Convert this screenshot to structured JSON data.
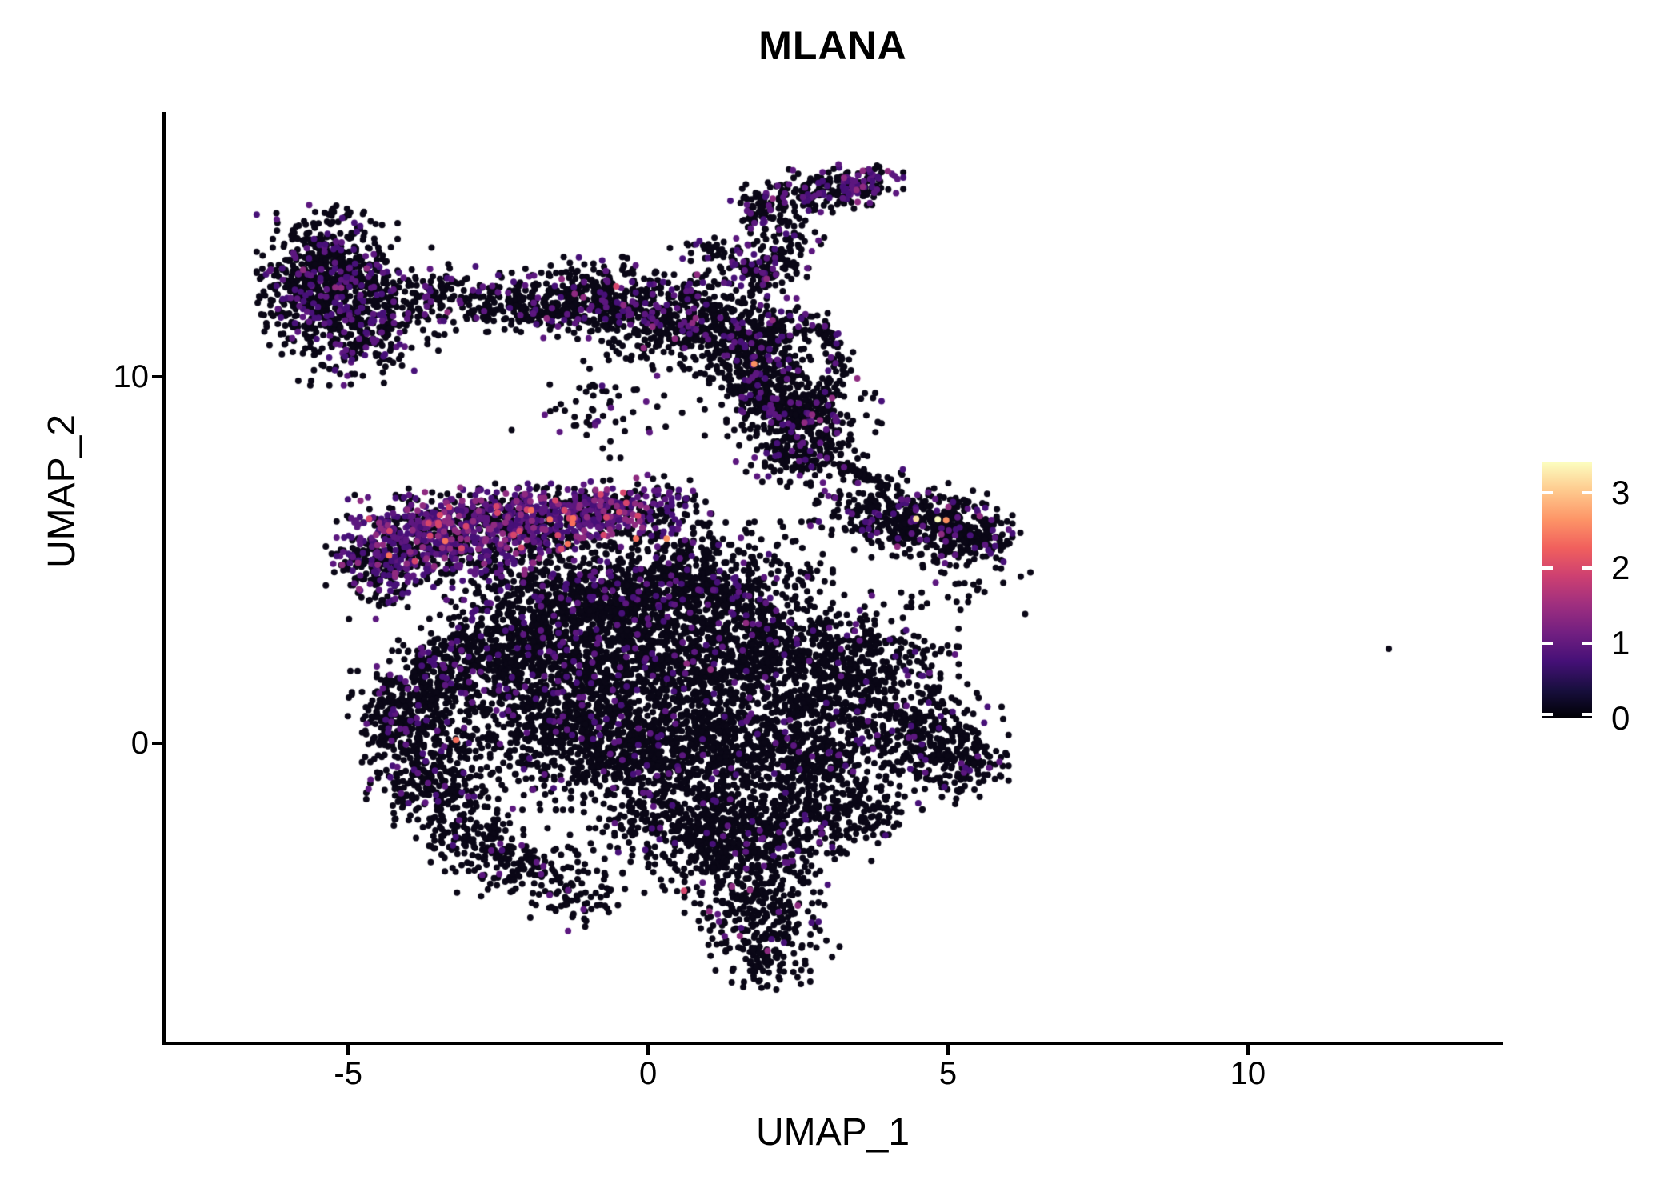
{
  "title": "MLANA",
  "x_axis": {
    "label": "UMAP_1",
    "tick_labels": [
      "-5",
      "0",
      "5",
      "10"
    ]
  },
  "y_axis": {
    "label": "UMAP_2",
    "tick_labels": [
      "0",
      "10"
    ]
  },
  "colorbar": {
    "tick_labels": [
      "0",
      "1",
      "2",
      "3"
    ]
  },
  "chart_data": {
    "type": "scatter",
    "title": "MLANA",
    "xlabel": "UMAP_1",
    "ylabel": "UMAP_2",
    "xlim": [
      -8.07,
      14.23
    ],
    "ylim": [
      -8.14,
      17.23
    ],
    "x_ticks": [
      -5,
      0,
      5,
      10
    ],
    "y_ticks": [
      0,
      10
    ],
    "grid": false,
    "point_radius_px": 4,
    "seed": 42,
    "legend": {
      "position": "right",
      "ticks": [
        0,
        1,
        2,
        3
      ],
      "vmin": 0,
      "vmax": 3.4,
      "colormap": "magma",
      "ramp": [
        "#000004",
        "#180f3e",
        "#451077",
        "#721f81",
        "#9f2f7f",
        "#cd4071",
        "#f1605d",
        "#fd9567",
        "#fec98d",
        "#fcfdbf"
      ]
    },
    "palette": {
      "black": "#0a0716",
      "purple": "#471078",
      "purple2": "#5c177f",
      "magenta": "#8e2a80",
      "pink": "#d6456c",
      "salmon": "#f7705c",
      "orange": "#fa9061",
      "cream": "#fde0a1",
      "pale": "#fcfdbf"
    },
    "clusters": [
      {
        "name": "topleft-core",
        "cx": -5.35,
        "cy": 13.0,
        "sx": 0.5,
        "sy": 0.72,
        "n": 420,
        "mix": {
          "p": 0.16,
          "m": 0.015
        }
      },
      {
        "name": "topleft-lower",
        "cx": -4.8,
        "cy": 11.65,
        "sx": 0.62,
        "sy": 0.8,
        "n": 480,
        "mix": {
          "p": 0.18,
          "m": 0.02
        }
      },
      {
        "name": "topleft-west",
        "cx": -5.85,
        "cy": 11.9,
        "sx": 0.28,
        "sy": 0.55,
        "n": 100,
        "mix": {
          "p": 0.2
        }
      },
      {
        "name": "bridge-1",
        "cx": -3.5,
        "cy": 12.3,
        "sx": 0.45,
        "sy": 0.33,
        "n": 90,
        "mix": {
          "p": 0.12
        }
      },
      {
        "name": "bridge-2",
        "cx": -2.6,
        "cy": 12.0,
        "sx": 0.4,
        "sy": 0.33,
        "n": 85,
        "mix": {
          "p": 0.12
        }
      },
      {
        "name": "wing-1",
        "cx": -1.7,
        "cy": 11.95,
        "sx": 0.42,
        "sy": 0.38,
        "n": 150,
        "mix": {
          "p": 0.12
        }
      },
      {
        "name": "wing-2",
        "cx": -0.75,
        "cy": 12.1,
        "sx": 0.6,
        "sy": 0.5,
        "n": 320,
        "mix": {
          "p": 0.12,
          "m": 0.01
        }
      },
      {
        "name": "wing-3",
        "cx": 0.45,
        "cy": 11.5,
        "sx": 0.65,
        "sy": 0.55,
        "n": 360,
        "mix": {
          "p": 0.12,
          "m": 0.01
        }
      },
      {
        "name": "wing-4",
        "cx": 1.4,
        "cy": 11.0,
        "sx": 0.45,
        "sy": 0.5,
        "n": 220,
        "mix": {
          "p": 0.1
        }
      },
      {
        "name": "wing-arm",
        "cx": 2.15,
        "cy": 10.2,
        "sx": 0.3,
        "sy": 0.45,
        "n": 110,
        "mix": {
          "p": 0.1
        }
      },
      {
        "name": "top-small-1",
        "cx": 1.9,
        "cy": 14.55,
        "sx": 0.28,
        "sy": 0.3,
        "n": 70,
        "mix": {
          "p": 0.18
        }
      },
      {
        "name": "top-small-2",
        "cx": 2.8,
        "cy": 15.05,
        "sx": 0.45,
        "sy": 0.26,
        "n": 130,
        "mix": {
          "p": 0.2,
          "m": 0.02
        }
      },
      {
        "name": "top-small-3",
        "cx": 3.55,
        "cy": 15.3,
        "sx": 0.3,
        "sy": 0.24,
        "n": 110,
        "mix": {
          "p": 0.38,
          "m": 0.05
        }
      },
      {
        "name": "top-neck",
        "cx": 2.35,
        "cy": 13.7,
        "sx": 0.25,
        "sy": 0.45,
        "n": 70,
        "mix": {
          "p": 0.15
        }
      },
      {
        "name": "top-clump",
        "cx": 1.95,
        "cy": 12.9,
        "sx": 0.3,
        "sy": 0.33,
        "n": 90,
        "mix": {
          "p": 0.2
        }
      },
      {
        "name": "top-left-bits",
        "cx": 1.1,
        "cy": 13.35,
        "sx": 0.35,
        "sy": 0.25,
        "n": 40,
        "mix": {
          "p": 0.1
        }
      },
      {
        "name": "scatter-above-ring",
        "cx": 1.3,
        "cy": 12.3,
        "sx": 0.5,
        "sy": 0.5,
        "n": 55,
        "mix": {
          "p": 0.15
        }
      },
      {
        "name": "ring-bottom",
        "cx": 2.6,
        "cy": 8.9,
        "sx": 0.55,
        "sy": 0.45,
        "n": 220,
        "mix": {
          "p": 0.12,
          "m": 0.01
        }
      },
      {
        "name": "ring-west-arc",
        "cx": 1.75,
        "cy": 9.7,
        "sx": 0.3,
        "sy": 0.55,
        "n": 90,
        "mix": {
          "p": 0.15
        }
      },
      {
        "name": "sparse-below-wing",
        "cx": -0.7,
        "cy": 9.2,
        "sx": 0.7,
        "sy": 0.6,
        "n": 60,
        "mix": {
          "p": 0.15
        }
      },
      {
        "name": "neck",
        "cx": 2.5,
        "cy": 7.9,
        "sx": 0.5,
        "sy": 0.45,
        "n": 160,
        "mix": {
          "p": 0.1
        }
      },
      {
        "name": "dash",
        "cx": 3.45,
        "cy": 7.42,
        "sx": 0.33,
        "sy": 0.05,
        "n": 70,
        "rot": -40,
        "mix": {}
      },
      {
        "name": "east-arm-1",
        "cx": 4.0,
        "cy": 6.3,
        "sx": 0.55,
        "sy": 0.5,
        "n": 260,
        "mix": {
          "p": 0.12,
          "m": 0.01
        }
      },
      {
        "name": "east-arm-2",
        "cx": 4.9,
        "cy": 5.9,
        "sx": 0.5,
        "sy": 0.45,
        "n": 260,
        "mix": {
          "p": 0.1,
          "m": 0.01
        }
      },
      {
        "name": "east-arm-tip",
        "cx": 5.55,
        "cy": 5.6,
        "sx": 0.28,
        "sy": 0.33,
        "n": 100,
        "mix": {
          "p": 0.08
        }
      },
      {
        "name": "sparse-right",
        "cx": 5.2,
        "cy": 4.3,
        "sx": 0.5,
        "sy": 0.5,
        "n": 30,
        "mix": {
          "p": 0.1
        }
      },
      {
        "name": "streak-tip",
        "cx": -4.55,
        "cy": 4.9,
        "sx": 0.35,
        "sy": 0.42,
        "n": 150,
        "mix": {
          "p": 0.3,
          "m": 0.04
        }
      },
      {
        "name": "streak-1",
        "cx": -3.9,
        "cy": 5.6,
        "sx": 0.55,
        "sy": 0.5,
        "n": 320,
        "mix": {
          "p": 0.42,
          "m": 0.09,
          "k": 0.025,
          "s": 0.006
        }
      },
      {
        "name": "streak-2",
        "cx": -2.9,
        "cy": 5.9,
        "sx": 0.6,
        "sy": 0.46,
        "n": 330,
        "mix": {
          "p": 0.42,
          "m": 0.1,
          "k": 0.03,
          "s": 0.006
        }
      },
      {
        "name": "streak-3",
        "cx": -1.9,
        "cy": 6.1,
        "sx": 0.6,
        "sy": 0.42,
        "n": 300,
        "mix": {
          "p": 0.42,
          "m": 0.09,
          "k": 0.025,
          "s": 0.006
        }
      },
      {
        "name": "streak-4",
        "cx": -0.9,
        "cy": 6.3,
        "sx": 0.55,
        "sy": 0.4,
        "n": 240,
        "mix": {
          "p": 0.4,
          "m": 0.08,
          "k": 0.02
        }
      },
      {
        "name": "streak-5",
        "cx": 0.0,
        "cy": 6.5,
        "sx": 0.45,
        "sy": 0.35,
        "n": 120,
        "mix": {
          "p": 0.35,
          "m": 0.06,
          "k": 0.02
        }
      },
      {
        "name": "streak-fringe",
        "cx": -2.6,
        "cy": 4.9,
        "sx": 0.8,
        "sy": 0.35,
        "n": 130,
        "mix": {
          "p": 0.3,
          "m": 0.04
        }
      },
      {
        "name": "streak-below",
        "cx": -4.3,
        "cy": 4.1,
        "sx": 0.4,
        "sy": 0.3,
        "n": 45,
        "mix": {
          "p": 0.25
        }
      },
      {
        "name": "between",
        "cx": 0.3,
        "cy": 5.3,
        "sx": 0.6,
        "sy": 0.6,
        "n": 60,
        "mix": {
          "p": 0.15
        }
      },
      {
        "name": "central-1",
        "cx": -1.5,
        "cy": 3.9,
        "sx": 0.75,
        "sy": 0.6,
        "n": 380,
        "mix": {
          "p": 0.1
        }
      },
      {
        "name": "central-2",
        "cx": -0.2,
        "cy": 4.2,
        "sx": 0.8,
        "sy": 0.65,
        "n": 420,
        "mix": {
          "p": 0.09
        }
      },
      {
        "name": "central-3",
        "cx": 1.2,
        "cy": 4.4,
        "sx": 0.8,
        "sy": 0.7,
        "n": 420,
        "mix": {
          "p": 0.08
        }
      },
      {
        "name": "central-4",
        "cx": -1.9,
        "cy": 2.4,
        "sx": 0.8,
        "sy": 0.8,
        "n": 500,
        "mix": {
          "p": 0.07
        }
      },
      {
        "name": "central-5",
        "cx": -0.3,
        "cy": 2.2,
        "sx": 0.95,
        "sy": 0.9,
        "n": 650,
        "mix": {
          "p": 0.06
        }
      },
      {
        "name": "central-6",
        "cx": 1.6,
        "cy": 2.5,
        "sx": 0.9,
        "sy": 0.85,
        "n": 600,
        "mix": {
          "p": 0.07,
          "m": 0.005
        }
      },
      {
        "name": "central-7",
        "cx": 3.3,
        "cy": 2.0,
        "sx": 0.8,
        "sy": 0.9,
        "n": 500,
        "mix": {
          "p": 0.06
        }
      },
      {
        "name": "right-lobe",
        "cx": 4.6,
        "cy": 0.2,
        "sx": 0.6,
        "sy": 0.7,
        "n": 300,
        "mix": {
          "p": 0.05
        }
      },
      {
        "name": "right-lobe-tip",
        "cx": 5.35,
        "cy": -0.6,
        "sx": 0.35,
        "sy": 0.45,
        "n": 90,
        "mix": {
          "p": 0.04
        }
      },
      {
        "name": "central-8",
        "cx": -1.3,
        "cy": 0.3,
        "sx": 0.8,
        "sy": 0.9,
        "n": 550,
        "mix": {
          "p": 0.06
        }
      },
      {
        "name": "central-9",
        "cx": 0.4,
        "cy": -0.2,
        "sx": 0.9,
        "sy": 0.9,
        "n": 650,
        "mix": {
          "p": 0.05
        }
      },
      {
        "name": "central-10",
        "cx": 2.3,
        "cy": 0.0,
        "sx": 0.85,
        "sy": 0.85,
        "n": 550,
        "mix": {
          "p": 0.05
        }
      },
      {
        "name": "bottom-1",
        "cx": 0.8,
        "cy": -2.2,
        "sx": 0.8,
        "sy": 0.8,
        "n": 450,
        "mix": {
          "p": 0.05
        }
      },
      {
        "name": "bottom-2",
        "cx": 1.9,
        "cy": -2.5,
        "sx": 0.6,
        "sy": 0.7,
        "n": 300,
        "mix": {
          "p": 0.05
        }
      },
      {
        "name": "bottom-tail",
        "cx": 1.9,
        "cy": -4.5,
        "sx": 0.55,
        "sy": 0.8,
        "n": 280,
        "mix": {
          "p": 0.05,
          "m": 0.007
        }
      },
      {
        "name": "bottom-tip",
        "cx": 2.0,
        "cy": -5.9,
        "sx": 0.3,
        "sy": 0.4,
        "n": 80,
        "mix": {
          "p": 0.04
        }
      },
      {
        "name": "right-bottom-edge",
        "cx": 3.4,
        "cy": -1.8,
        "sx": 0.5,
        "sy": 0.6,
        "n": 200,
        "mix": {
          "p": 0.05
        }
      },
      {
        "name": "wedge-edge-1",
        "cx": -4.3,
        "cy": 0.8,
        "sx": 0.3,
        "sy": 0.5,
        "n": 150,
        "mix": {
          "p": 0.12
        }
      },
      {
        "name": "wedge-edge-2",
        "cx": -3.7,
        "cy": 1.7,
        "sx": 0.35,
        "sy": 0.5,
        "n": 160,
        "mix": {
          "p": 0.1
        }
      },
      {
        "name": "wedge-edge-3",
        "cx": -3.1,
        "cy": 2.5,
        "sx": 0.4,
        "sy": 0.45,
        "n": 150,
        "mix": {
          "p": 0.1
        }
      },
      {
        "name": "wedge-low-1",
        "cx": -3.9,
        "cy": -0.6,
        "sx": 0.4,
        "sy": 0.7,
        "n": 170,
        "mix": {
          "p": 0.08
        }
      },
      {
        "name": "wedge-low-2",
        "cx": -3.3,
        "cy": -1.7,
        "sx": 0.4,
        "sy": 0.6,
        "n": 150,
        "mix": {
          "p": 0.07
        }
      },
      {
        "name": "wedge-low-3",
        "cx": -2.8,
        "cy": -2.9,
        "sx": 0.35,
        "sy": 0.5,
        "n": 120,
        "mix": {
          "p": 0.07
        }
      },
      {
        "name": "wedge-interior",
        "cx": -3.3,
        "cy": 0.4,
        "sx": 0.6,
        "sy": 0.9,
        "n": 150,
        "mix": {
          "p": 0.08
        }
      },
      {
        "name": "strand-1",
        "cx": -1.9,
        "cy": -3.4,
        "sx": 0.5,
        "sy": 0.4,
        "n": 90,
        "mix": {
          "p": 0.05
        }
      },
      {
        "name": "strand-2",
        "cx": -1.2,
        "cy": -4.3,
        "sx": 0.4,
        "sy": 0.35,
        "n": 70,
        "mix": {
          "p": 0.05
        }
      }
    ],
    "rings": [
      {
        "name": "ring",
        "cx": 2.45,
        "cy": 10.3,
        "rx": 0.72,
        "ry": 1.25,
        "sr": 0.16,
        "n": 300,
        "mix": {
          "p": 0.15,
          "m": 0.01
        }
      }
    ],
    "special_points": [
      {
        "x": 4.47,
        "y": 6.13,
        "c": "cream"
      },
      {
        "x": 4.83,
        "y": 6.11,
        "c": "pale"
      },
      {
        "x": 4.97,
        "y": 6.09,
        "c": "orange"
      },
      {
        "x": 0.31,
        "y": 5.59,
        "c": "orange"
      },
      {
        "x": -0.2,
        "y": 5.59,
        "c": "salmon"
      },
      {
        "x": -3.2,
        "y": 0.09,
        "c": "salmon"
      },
      {
        "x": 0.6,
        "y": -4.02,
        "c": "pink"
      },
      {
        "x": 1.53,
        "y": -5.26,
        "c": "magenta"
      },
      {
        "x": -0.53,
        "y": 12.47,
        "c": "pink"
      },
      {
        "x": 1.77,
        "y": 10.35,
        "c": "orange"
      },
      {
        "x": 12.35,
        "y": 2.58,
        "c": "black"
      }
    ]
  }
}
